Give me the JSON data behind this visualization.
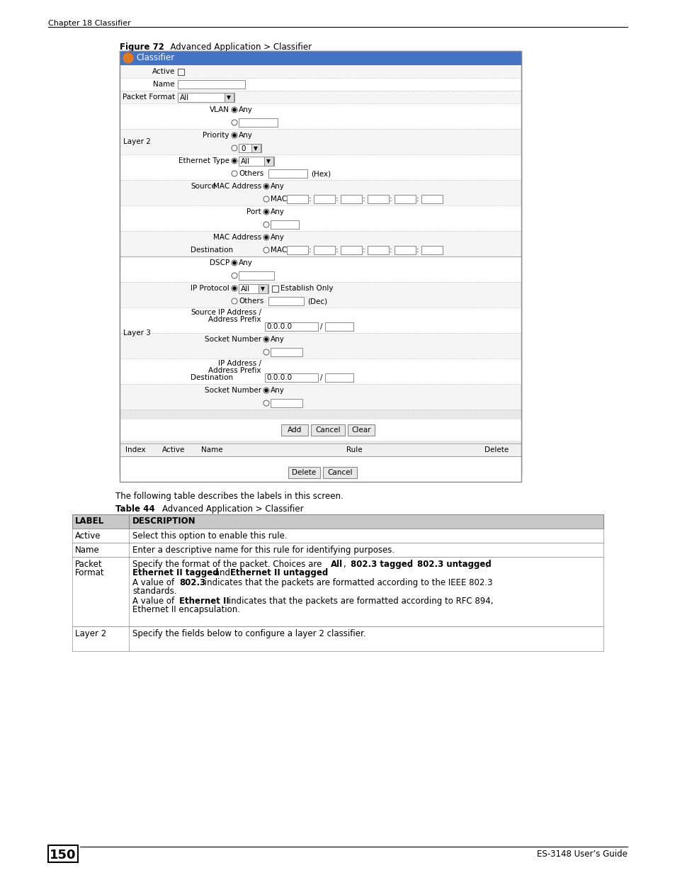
{
  "page_title": "Chapter 18 Classifier",
  "figure_label": "Figure 72",
  "figure_title": "Advanced Application > Classifier",
  "table_label": "Table 44",
  "table_title": "Advanced Application > Classifier",
  "page_number": "150",
  "page_footer": "ES-3148 User’s Guide",
  "bg_color": "#ffffff"
}
